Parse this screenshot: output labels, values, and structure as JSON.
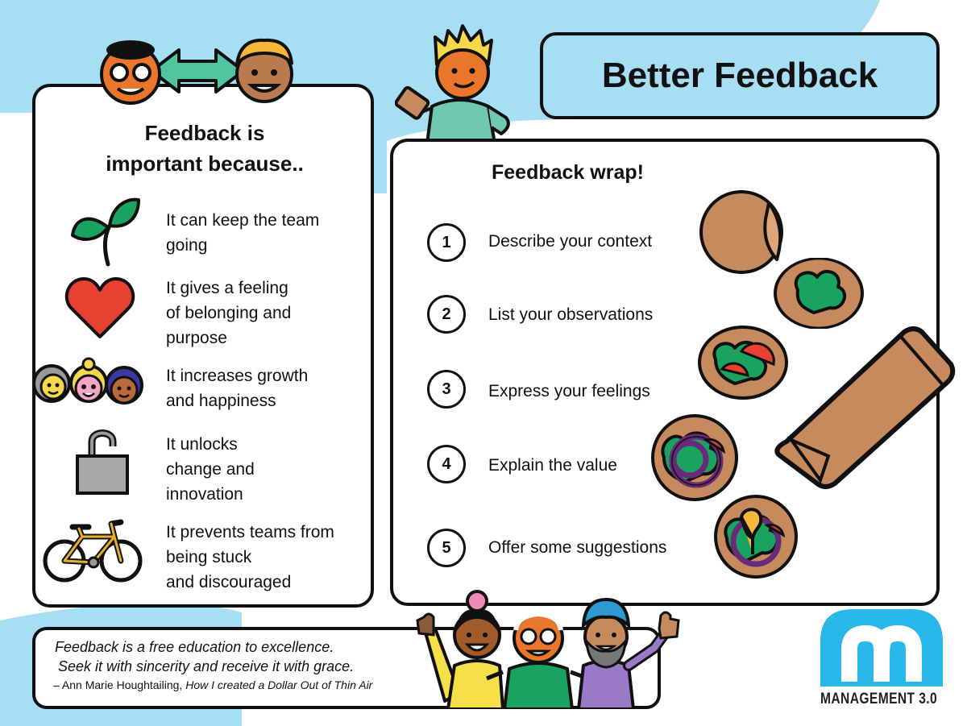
{
  "title": "Better Feedback",
  "left_panel": {
    "heading_line1": "Feedback is",
    "heading_line2": "important because..",
    "reasons": [
      {
        "icon": "sprout-icon",
        "lines": [
          "It can keep the team",
          "going"
        ]
      },
      {
        "icon": "heart-icon",
        "lines": [
          "It gives a feeling",
          "of belonging and",
          "purpose"
        ]
      },
      {
        "icon": "people-group-icon",
        "lines": [
          "It increases growth",
          "and happiness"
        ]
      },
      {
        "icon": "unlocked-padlock-icon",
        "lines": [
          "It unlocks",
          "change and",
          "innovation"
        ]
      },
      {
        "icon": "bicycle-icon",
        "lines": [
          "It prevents teams from",
          "being stuck",
          "and discouraged"
        ]
      }
    ]
  },
  "wrap_panel": {
    "heading": "Feedback wrap!",
    "steps": [
      {
        "number": "1",
        "label": "Describe your context"
      },
      {
        "number": "2",
        "label": "List your observations"
      },
      {
        "number": "3",
        "label": "Express your feelings"
      },
      {
        "number": "4",
        "label": "Explain the value"
      },
      {
        "number": "5",
        "label": "Offer some suggestions"
      }
    ]
  },
  "quote": {
    "line1": "Feedback is a free education to excellence.",
    "line2": "Seek it with sincerity and receive it with grace.",
    "attribution_prefix": "– Ann Marie Houghtailing, ",
    "attribution_title": "How I created a Dollar Out of Thin Air"
  },
  "brand": {
    "logo_letter": "m",
    "name": "MANAGEMENT 3.0"
  },
  "colors": {
    "background_blue": "#a6def4",
    "brand_blue": "#29b6e8",
    "leaf_green": "#1aa260",
    "heart_red": "#e8412f",
    "tortilla": "#c68a5c"
  }
}
